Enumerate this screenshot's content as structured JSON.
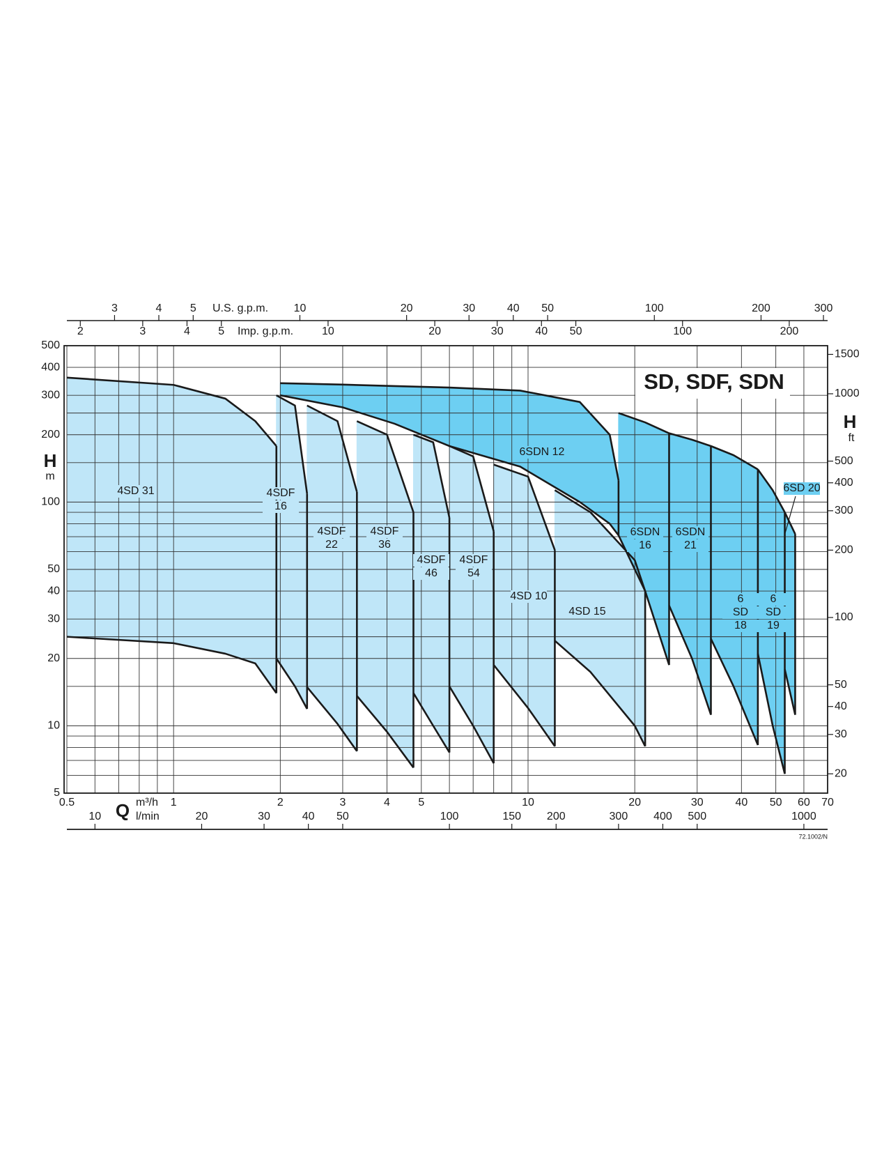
{
  "chart_data": {
    "type": "pump-range",
    "title": "SD, SDF, SDN",
    "x_label": "Q",
    "x_unit": "m³/h",
    "x2_unit": "l/min",
    "y_label": "H",
    "y_unit": "m",
    "y2_label": "H",
    "y2_unit": "ft",
    "top_label": "U.S. g.p.m.",
    "top2_label": "Imp. g.p.m.",
    "code": "72.1002/N",
    "xscale": "log",
    "yscale": "log",
    "xlim": [
      0.5,
      70
    ],
    "xticks": [
      0.5,
      1,
      2,
      3,
      4,
      5,
      10,
      20,
      30,
      40,
      50,
      60,
      70
    ],
    "xgrid": [
      0.6,
      0.7,
      0.8,
      0.9,
      6,
      7,
      8,
      9
    ],
    "ylim": [
      5,
      500
    ],
    "yticks": [
      5,
      10,
      20,
      30,
      40,
      50,
      100,
      200,
      300,
      400,
      500
    ],
    "ygrid": [
      6,
      7,
      8,
      9,
      15,
      25,
      60,
      70,
      80,
      90,
      150,
      250
    ],
    "x2lim": [
      8.333,
      1166.7
    ],
    "x2ticks": [
      10,
      20,
      30,
      40,
      50,
      100,
      150,
      200,
      300,
      400,
      500,
      1000
    ],
    "toplim": [
      2.201,
      308.2
    ],
    "topticks": [
      3,
      4,
      5,
      10,
      20,
      30,
      40,
      50,
      100,
      200,
      300
    ],
    "top2lim": [
      1.833,
      256.6
    ],
    "top2ticks": [
      2,
      3,
      4,
      5,
      10,
      20,
      30,
      40,
      50,
      100,
      200
    ],
    "y2lim": [
      16.4,
      1640.4
    ],
    "y2ticks": [
      20,
      30,
      40,
      50,
      100,
      200,
      300,
      400,
      500,
      1000,
      1500
    ],
    "series": [
      {
        "label": [
          "4SD 31"
        ],
        "color": "#bfe6f8",
        "x": [
          0.5,
          1,
          1.4,
          1.7,
          1.95
        ],
        "upper": [
          360,
          334,
          290,
          230,
          178
        ],
        "lower": [
          25,
          23.4,
          21,
          19,
          14
        ]
      },
      {
        "label": [
          "4SDF",
          "16"
        ],
        "color": "#bfe6f8",
        "x": [
          1.95,
          2.2,
          2.38
        ],
        "upper": [
          300,
          270,
          109
        ],
        "lower": [
          20,
          15,
          11.9
        ]
      },
      {
        "label": [
          "4SDF",
          "22"
        ],
        "color": "#bfe6f8",
        "x": [
          2.38,
          2.9,
          3.29
        ],
        "upper": [
          270,
          230,
          111
        ],
        "lower": [
          14.9,
          10.2,
          7.7
        ]
      },
      {
        "label": [
          "4SDF",
          "36"
        ],
        "color": "#bfe6f8",
        "x": [
          3.29,
          4,
          4.75
        ],
        "upper": [
          230,
          200,
          90
        ],
        "lower": [
          13.6,
          9.4,
          6.5
        ]
      },
      {
        "label": [
          "4SDF",
          "46"
        ],
        "color": "#bfe6f8",
        "x": [
          4.75,
          5.4,
          6
        ],
        "upper": [
          200,
          185,
          85
        ],
        "lower": [
          14,
          10,
          7.6
        ]
      },
      {
        "label": [
          "4SDF",
          "54"
        ],
        "color": "#bfe6f8",
        "x": [
          6,
          7,
          8
        ],
        "upper": [
          178,
          160,
          74
        ],
        "lower": [
          15,
          10,
          6.8
        ]
      },
      {
        "label": [
          "4SD 10"
        ],
        "color": "#bfe6f8",
        "x": [
          8,
          10,
          11.9
        ],
        "upper": [
          147,
          130,
          61
        ],
        "lower": [
          18.7,
          12,
          8.1
        ]
      },
      {
        "label": [
          "4SD 15"
        ],
        "color": "#bfe6f8",
        "x": [
          11.9,
          15,
          20,
          21.4
        ],
        "upper": [
          113,
          90,
          55,
          40
        ],
        "lower": [
          24,
          17.4,
          10,
          8.1
        ]
      },
      {
        "label": [
          "6SDN 12"
        ],
        "color": "#6dcff2",
        "x": [
          2,
          3,
          4.2,
          6,
          9.5,
          14,
          17,
          18
        ],
        "upper": [
          340,
          335,
          330,
          325,
          315,
          280,
          200,
          125
        ],
        "lower": [
          300,
          265,
          224,
          178,
          144,
          100,
          80,
          71
        ]
      },
      {
        "label": [
          "6SDN",
          "16"
        ],
        "color": "#6dcff2",
        "x": [
          18,
          21.4,
          25
        ],
        "upper": [
          250,
          227,
          203
        ],
        "lower": [
          71,
          40,
          18.7
        ]
      },
      {
        "label": [
          "6SDN",
          "21"
        ],
        "color": "#6dcff2",
        "x": [
          25,
          29,
          32.8
        ],
        "upper": [
          203,
          190,
          178
        ],
        "lower": [
          34.5,
          20,
          11.2
        ]
      },
      {
        "label": [
          "6",
          "SD",
          "18"
        ],
        "color": "#6dcff2",
        "x": [
          32.8,
          38,
          44.5
        ],
        "upper": [
          178,
          162,
          140
        ],
        "lower": [
          24.5,
          15,
          8.2
        ]
      },
      {
        "label": [
          "6",
          "SD",
          "19"
        ],
        "color": "#6dcff2",
        "x": [
          44.5,
          49,
          53
        ],
        "upper": [
          140,
          113,
          90
        ],
        "lower": [
          21,
          10,
          6.1
        ]
      },
      {
        "label": [
          "6SD 20"
        ],
        "color": "#6dcff2",
        "x": [
          53,
          56.7
        ],
        "upper": [
          90,
          72
        ],
        "lower": [
          17.9,
          11.2
        ]
      }
    ]
  }
}
